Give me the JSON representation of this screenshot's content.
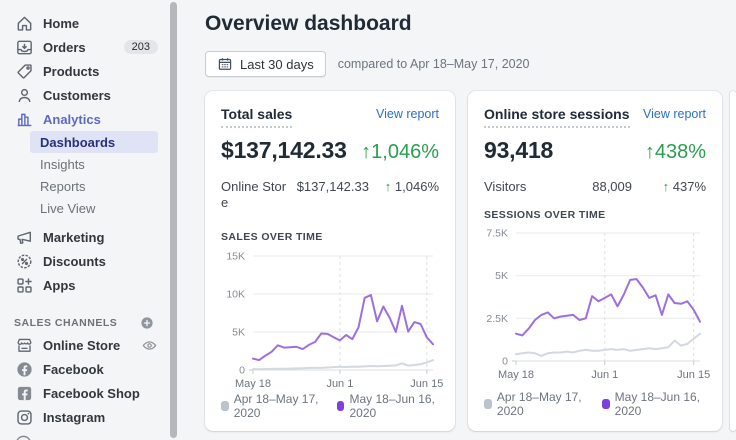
{
  "sidebar": {
    "items": [
      {
        "label": "Home"
      },
      {
        "label": "Orders",
        "badge": "203"
      },
      {
        "label": "Products"
      },
      {
        "label": "Customers"
      },
      {
        "label": "Analytics"
      }
    ],
    "analytics_sub": [
      {
        "label": "Dashboards"
      },
      {
        "label": "Insights"
      },
      {
        "label": "Reports"
      },
      {
        "label": "Live View"
      }
    ],
    "secondary": [
      {
        "label": "Marketing"
      },
      {
        "label": "Discounts"
      },
      {
        "label": "Apps"
      }
    ],
    "channels_header": "SALES CHANNELS",
    "channels": [
      {
        "label": "Online Store"
      },
      {
        "label": "Facebook"
      },
      {
        "label": "Facebook Shop"
      },
      {
        "label": "Instagram"
      }
    ]
  },
  "header": {
    "title": "Overview dashboard",
    "date_button": "Last 30 days",
    "compare_text": "compared to Apr 18–May 17, 2020"
  },
  "cards": {
    "total_sales": {
      "title": "Total sales",
      "view_report": "View report",
      "value": "$137,142.33",
      "change": "↑1,046%",
      "breakdown": {
        "label": "Online Stor\ne",
        "value": "$137,142.33",
        "change_arrow": "↑",
        "change": "1,046%"
      },
      "section_label": "SALES OVER TIME"
    },
    "sessions": {
      "title": "Online store sessions",
      "view_report": "View report",
      "value": "93,418",
      "change": "↑438%",
      "breakdown": {
        "label": "Visitors",
        "value": "88,009",
        "change_arrow": "↑",
        "change": "437%"
      },
      "section_label": "SESSIONS OVER TIME"
    }
  },
  "chart_data": [
    {
      "id": "sales-over-time",
      "type": "line",
      "title": "SALES OVER TIME",
      "ylim": [
        0,
        15000
      ],
      "yticks": [
        {
          "v": 0,
          "label": "0"
        },
        {
          "v": 5000,
          "label": "5K"
        },
        {
          "v": 10000,
          "label": "10K"
        },
        {
          "v": 15000,
          "label": "15K"
        }
      ],
      "xticks": [
        {
          "i": 0,
          "label": "May 18"
        },
        {
          "i": 14,
          "label": "Jun 1"
        },
        {
          "i": 28,
          "label": "Jun 15"
        }
      ],
      "grid": true,
      "legend_position": "bottom",
      "series": [
        {
          "name": "Apr 18–May 17, 2020",
          "color": "#d4d9df",
          "swatch": "#bcc3cd",
          "values": [
            120,
            110,
            130,
            150,
            160,
            170,
            190,
            210,
            230,
            260,
            300,
            280,
            330,
            380,
            430,
            390,
            450,
            420,
            480,
            520,
            490,
            530,
            560,
            600,
            880,
            580,
            660,
            760,
            1000,
            1300
          ]
        },
        {
          "name": "May 18–Jun 16, 2020",
          "color": "#9d6fe0",
          "swatch": "#7f3fdc",
          "values": [
            1500,
            1300,
            1900,
            2400,
            3250,
            2950,
            3000,
            3050,
            2750,
            3300,
            3700,
            4800,
            4750,
            4300,
            3900,
            4600,
            4050,
            5600,
            9500,
            9850,
            6400,
            8350,
            6900,
            5000,
            8450,
            5050,
            6300,
            6050,
            4300,
            3400
          ]
        }
      ]
    },
    {
      "id": "sessions-over-time",
      "type": "line",
      "title": "SESSIONS OVER TIME",
      "ylim": [
        0,
        7500
      ],
      "yticks": [
        {
          "v": 0,
          "label": "0"
        },
        {
          "v": 2500,
          "label": "2.5K"
        },
        {
          "v": 5000,
          "label": "5K"
        },
        {
          "v": 7500,
          "label": "7.5K"
        }
      ],
      "xticks": [
        {
          "i": 0,
          "label": "May 18"
        },
        {
          "i": 14,
          "label": "Jun 1"
        },
        {
          "i": 28,
          "label": "Jun 15"
        }
      ],
      "grid": true,
      "legend_position": "bottom",
      "series": [
        {
          "name": "Apr 18–May 17, 2020",
          "color": "#d4d9df",
          "swatch": "#bcc3cd",
          "values": [
            400,
            450,
            500,
            450,
            300,
            450,
            500,
            500,
            550,
            500,
            600,
            650,
            600,
            600,
            650,
            700,
            650,
            700,
            600,
            650,
            700,
            750,
            700,
            750,
            800,
            1200,
            900,
            1000,
            1300,
            1600
          ]
        },
        {
          "name": "May 18–Jun 16, 2020",
          "color": "#9d6fe0",
          "swatch": "#7f3fdc",
          "values": [
            1600,
            1500,
            1900,
            2400,
            2700,
            2850,
            2500,
            2600,
            2650,
            2700,
            2400,
            2500,
            3800,
            3500,
            3700,
            3900,
            3200,
            3900,
            4750,
            4800,
            4300,
            3700,
            3850,
            2700,
            3900,
            3400,
            3350,
            3500,
            3000,
            2300
          ]
        }
      ]
    }
  ],
  "colors": {
    "accent_indigo": "#5c6ac4",
    "success_green": "#29a04d",
    "link_blue": "#2c6ecb",
    "chart_purple": "#9d6fe0",
    "chart_gray": "#d4d9df"
  }
}
